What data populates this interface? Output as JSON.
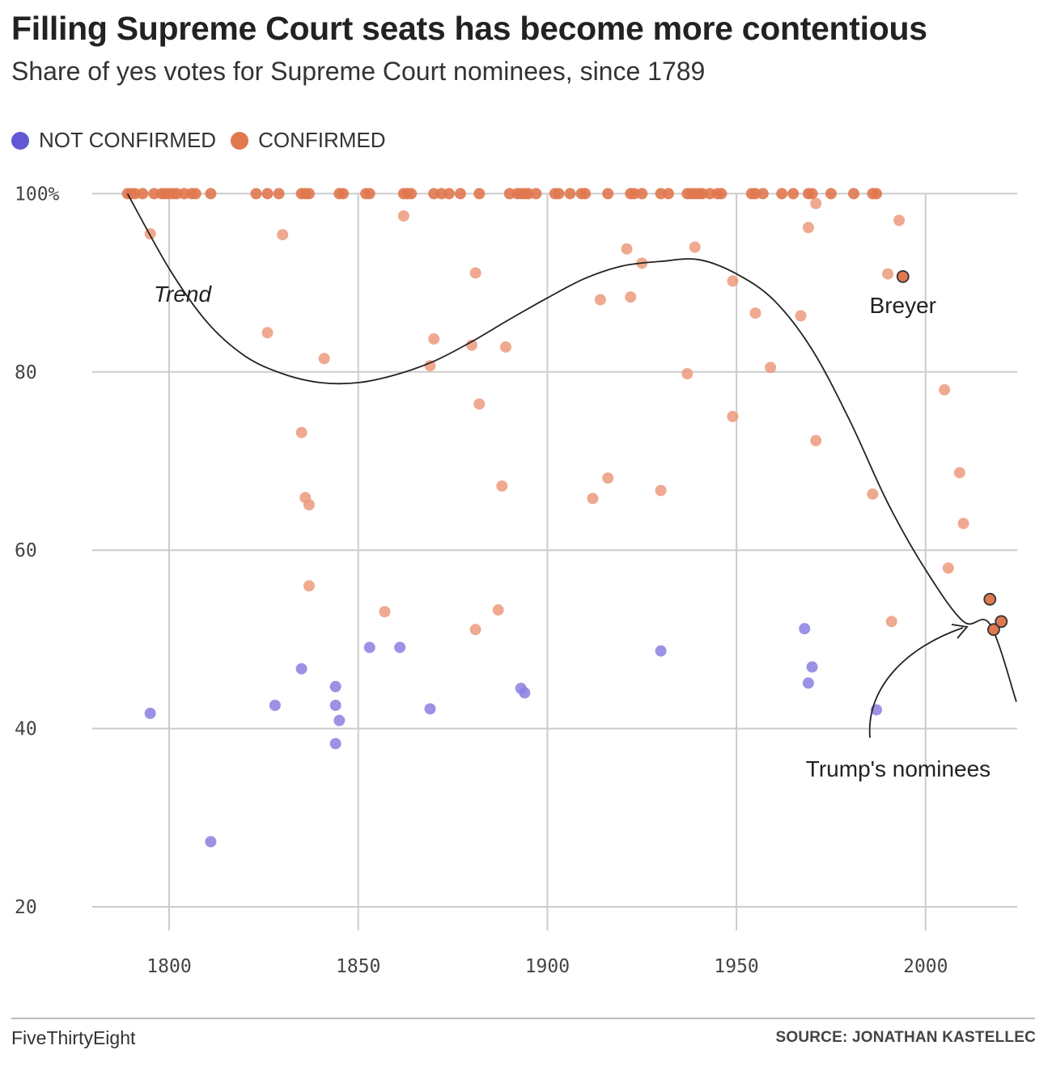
{
  "header": {
    "title": "Filling Supreme Court seats has become more contentious",
    "subtitle": "Share of yes votes for Supreme Court nominees, since 1789"
  },
  "legend": {
    "not_confirmed_label": "NOT CONFIRMED",
    "confirmed_label": "CONFIRMED"
  },
  "colors": {
    "not_confirmed": "#8a7fe2",
    "confirmed": "#ec9a7c",
    "highlight": "#e0784f",
    "grid": "#cccccc",
    "trend": "#222222"
  },
  "footer": {
    "brand": "FiveThirtyEight",
    "source": "SOURCE: JONATHAN KASTELLEC"
  },
  "chart_data": {
    "type": "scatter",
    "title": "Filling Supreme Court seats has become more contentious",
    "subtitle": "Share of yes votes for Supreme Court nominees, since 1789",
    "xlabel": "",
    "ylabel": "",
    "xlim": [
      1779,
      2025
    ],
    "ylim": [
      16,
      101
    ],
    "x_ticks": [
      1800,
      1850,
      1900,
      1950,
      2000
    ],
    "y_ticks": [
      20,
      40,
      60,
      80,
      100
    ],
    "y_tick_labels": [
      "20",
      "40",
      "60",
      "80",
      "100%"
    ],
    "grid": true,
    "legend_position": "top-left",
    "series": [
      {
        "name": "NOT CONFIRMED",
        "points": [
          [
            1795,
            41.7
          ],
          [
            1811,
            27.3
          ],
          [
            1828,
            42.6
          ],
          [
            1835,
            46.7
          ],
          [
            1844,
            44.7
          ],
          [
            1844,
            42.6
          ],
          [
            1845,
            40.9
          ],
          [
            1844,
            38.3
          ],
          [
            1853,
            49.1
          ],
          [
            1861,
            49.1
          ],
          [
            1869,
            42.2
          ],
          [
            1893,
            44.5
          ],
          [
            1894,
            44.0
          ],
          [
            1930,
            48.7
          ],
          [
            1968,
            51.2
          ],
          [
            1970,
            46.9
          ],
          [
            1969,
            45.1
          ],
          [
            1987,
            42.1
          ]
        ]
      },
      {
        "name": "CONFIRMED",
        "points": [
          [
            1789,
            100
          ],
          [
            1790,
            100
          ],
          [
            1791,
            100
          ],
          [
            1793,
            100
          ],
          [
            1796,
            100
          ],
          [
            1798,
            100
          ],
          [
            1799,
            100
          ],
          [
            1800,
            100
          ],
          [
            1801,
            100
          ],
          [
            1802,
            100
          ],
          [
            1804,
            100
          ],
          [
            1806,
            100
          ],
          [
            1807,
            100
          ],
          [
            1811,
            100
          ],
          [
            1823,
            100
          ],
          [
            1826,
            100
          ],
          [
            1829,
            100
          ],
          [
            1835,
            100
          ],
          [
            1836,
            100
          ],
          [
            1837,
            100
          ],
          [
            1845,
            100
          ],
          [
            1846,
            100
          ],
          [
            1852,
            100
          ],
          [
            1853,
            100
          ],
          [
            1862,
            100
          ],
          [
            1863,
            100
          ],
          [
            1864,
            100
          ],
          [
            1870,
            100
          ],
          [
            1872,
            100
          ],
          [
            1874,
            100
          ],
          [
            1877,
            100
          ],
          [
            1882,
            100
          ],
          [
            1890,
            100
          ],
          [
            1892,
            100
          ],
          [
            1893,
            100
          ],
          [
            1894,
            100
          ],
          [
            1895,
            100
          ],
          [
            1897,
            100
          ],
          [
            1902,
            100
          ],
          [
            1903,
            100
          ],
          [
            1906,
            100
          ],
          [
            1909,
            100
          ],
          [
            1910,
            100
          ],
          [
            1916,
            100
          ],
          [
            1922,
            100
          ],
          [
            1923,
            100
          ],
          [
            1925,
            100
          ],
          [
            1930,
            100
          ],
          [
            1932,
            100
          ],
          [
            1937,
            100
          ],
          [
            1938,
            100
          ],
          [
            1939,
            100
          ],
          [
            1940,
            100
          ],
          [
            1941,
            100
          ],
          [
            1943,
            100
          ],
          [
            1945,
            100
          ],
          [
            1946,
            100
          ],
          [
            1954,
            100
          ],
          [
            1955,
            100
          ],
          [
            1957,
            100
          ],
          [
            1962,
            100
          ],
          [
            1965,
            100
          ],
          [
            1969,
            100
          ],
          [
            1970,
            100
          ],
          [
            1975,
            100
          ],
          [
            1981,
            100
          ],
          [
            1986,
            100
          ],
          [
            1987,
            100
          ],
          [
            1795,
            95.5
          ],
          [
            1830,
            95.4
          ],
          [
            1826,
            84.4
          ],
          [
            1841,
            81.5
          ],
          [
            1835,
            73.2
          ],
          [
            1836,
            65.9
          ],
          [
            1837,
            65.1
          ],
          [
            1837,
            56.0
          ],
          [
            1857,
            53.1
          ],
          [
            1862,
            97.5
          ],
          [
            1870,
            83.7
          ],
          [
            1869,
            80.7
          ],
          [
            1880,
            83.0
          ],
          [
            1881,
            91.1
          ],
          [
            1882,
            76.4
          ],
          [
            1881,
            51.1
          ],
          [
            1887,
            53.3
          ],
          [
            1888,
            67.2
          ],
          [
            1889,
            82.8
          ],
          [
            1912,
            65.8
          ],
          [
            1914,
            88.1
          ],
          [
            1916,
            68.1
          ],
          [
            1921,
            93.8
          ],
          [
            1922,
            88.4
          ],
          [
            1925,
            92.2
          ],
          [
            1930,
            66.7
          ],
          [
            1937,
            79.8
          ],
          [
            1939,
            94.0
          ],
          [
            1949,
            90.2
          ],
          [
            1949,
            75.0
          ],
          [
            1955,
            86.6
          ],
          [
            1959,
            80.5
          ],
          [
            1967,
            86.3
          ],
          [
            1969,
            96.2
          ],
          [
            1971,
            98.9
          ],
          [
            1971,
            72.3
          ],
          [
            1986,
            66.3
          ],
          [
            1990,
            91.0
          ],
          [
            1991,
            52.0
          ],
          [
            1993,
            97.0
          ],
          [
            2005,
            78.0
          ],
          [
            2006,
            58.0
          ],
          [
            2009,
            68.7
          ],
          [
            2010,
            63.0
          ]
        ]
      },
      {
        "name": "CONFIRMED (highlighted)",
        "points": [
          [
            1994,
            90.7
          ],
          [
            2017,
            54.5
          ],
          [
            2018,
            51.1
          ],
          [
            2020,
            52.0
          ]
        ]
      }
    ],
    "trend": {
      "label": "Trend",
      "points": [
        [
          1789,
          100
        ],
        [
          1800,
          91.6
        ],
        [
          1810,
          85.6
        ],
        [
          1820,
          81.8
        ],
        [
          1830,
          79.8
        ],
        [
          1840,
          78.8
        ],
        [
          1850,
          78.8
        ],
        [
          1860,
          79.7
        ],
        [
          1870,
          81.2
        ],
        [
          1880,
          83.4
        ],
        [
          1890,
          85.9
        ],
        [
          1900,
          88.3
        ],
        [
          1910,
          90.5
        ],
        [
          1920,
          91.9
        ],
        [
          1930,
          92.4
        ],
        [
          1940,
          92.6
        ],
        [
          1950,
          91.0
        ],
        [
          1960,
          88.0
        ],
        [
          1970,
          82.5
        ],
        [
          1980,
          74.5
        ],
        [
          1990,
          65.3
        ],
        [
          2000,
          57.8
        ],
        [
          2010,
          52.0
        ],
        [
          2017,
          51.7
        ],
        [
          2024,
          43.0
        ]
      ]
    },
    "annotations": [
      {
        "label": "Breyer",
        "x": 1994,
        "y": 90.7
      },
      {
        "label": "Trump's nominees",
        "x": 2018,
        "y": 52.0
      }
    ]
  }
}
